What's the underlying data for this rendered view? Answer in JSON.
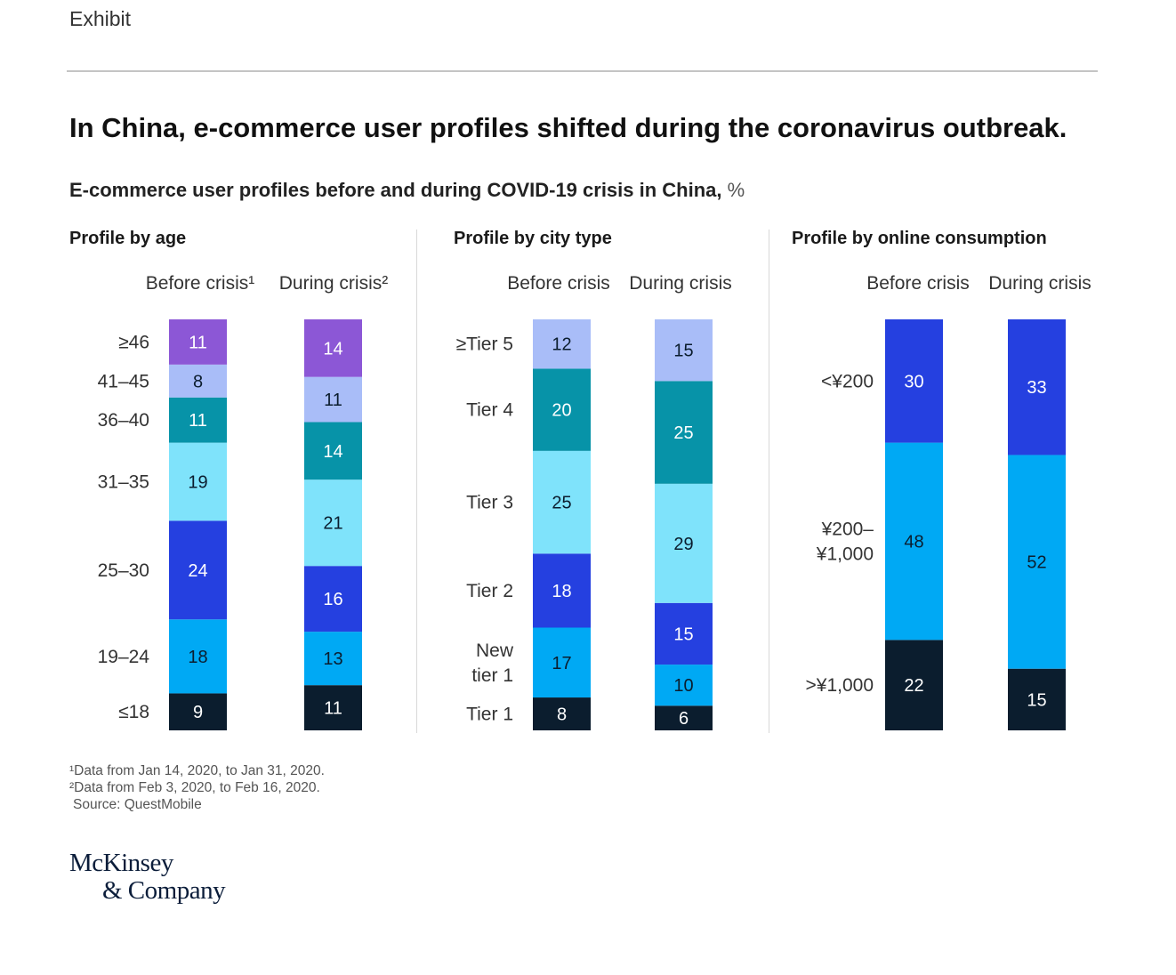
{
  "header": {
    "exhibit_label": "Exhibit",
    "title": "In China, e-commerce user profiles shifted during the coronavirus outbreak.",
    "subtitle": "E-commerce user profiles before and during COVID-19 crisis in China,",
    "unit": "%"
  },
  "colors": {
    "dark_navy": "#0b1d2e",
    "bright_blue": "#00a9f4",
    "royal_blue": "#2540e0",
    "light_cyan": "#7fe3fb",
    "teal": "#0793a8",
    "lavender": "#a9bdf8",
    "purple": "#8c57d6"
  },
  "chart_data": [
    {
      "type": "bar",
      "stacked": true,
      "title": "Profile by age",
      "categories": [
        "Before crisis",
        "During crisis"
      ],
      "category_superscripts": [
        "1",
        "2"
      ],
      "series": [
        {
          "name": "≤18",
          "values": [
            9,
            11
          ],
          "color": "#0b1d2e",
          "text_color": "#ffffff"
        },
        {
          "name": "19–24",
          "values": [
            18,
            13
          ],
          "color": "#00a9f4",
          "text_color": "#0b1d2e"
        },
        {
          "name": "25–30",
          "values": [
            24,
            16
          ],
          "color": "#2540e0",
          "text_color": "#ffffff"
        },
        {
          "name": "31–35",
          "values": [
            19,
            21
          ],
          "color": "#7fe3fb",
          "text_color": "#0b1d2e"
        },
        {
          "name": "36–40",
          "values": [
            11,
            14
          ],
          "color": "#0793a8",
          "text_color": "#ffffff"
        },
        {
          "name": "41–45",
          "values": [
            8,
            11
          ],
          "color": "#a9bdf8",
          "text_color": "#0b1d2e"
        },
        {
          "name": "≥46",
          "values": [
            11,
            14
          ],
          "color": "#8c57d6",
          "text_color": "#ffffff"
        }
      ]
    },
    {
      "type": "bar",
      "stacked": true,
      "title": "Profile by city type",
      "categories": [
        "Before crisis",
        "During crisis"
      ],
      "series": [
        {
          "name": "Tier 1",
          "values": [
            8,
            6
          ],
          "color": "#0b1d2e",
          "text_color": "#ffffff"
        },
        {
          "name": "New tier 1",
          "values": [
            17,
            10
          ],
          "color": "#00a9f4",
          "text_color": "#0b1d2e"
        },
        {
          "name": "Tier 2",
          "values": [
            18,
            15
          ],
          "color": "#2540e0",
          "text_color": "#ffffff"
        },
        {
          "name": "Tier 3",
          "values": [
            25,
            29
          ],
          "color": "#7fe3fb",
          "text_color": "#0b1d2e"
        },
        {
          "name": "Tier 4",
          "values": [
            20,
            25
          ],
          "color": "#0793a8",
          "text_color": "#ffffff"
        },
        {
          "name": "≥Tier 5",
          "values": [
            12,
            15
          ],
          "color": "#a9bdf8",
          "text_color": "#0b1d2e"
        }
      ]
    },
    {
      "type": "bar",
      "stacked": true,
      "title": "Profile by online consumption",
      "categories": [
        "Before crisis",
        "During crisis"
      ],
      "series": [
        {
          "name": ">¥1,000",
          "values": [
            22,
            15
          ],
          "color": "#0b1d2e",
          "text_color": "#ffffff"
        },
        {
          "name": "¥200–¥1,000",
          "values": [
            48,
            52
          ],
          "color": "#00a9f4",
          "text_color": "#0b1d2e"
        },
        {
          "name": "<¥200",
          "values": [
            30,
            33
          ],
          "color": "#2540e0",
          "text_color": "#ffffff"
        }
      ]
    }
  ],
  "footnotes": [
    "¹Data from Jan 14, 2020, to Jan 31, 2020.",
    "²Data from Feb 3, 2020, to Feb 16, 2020.",
    "Source: QuestMobile"
  ],
  "logo": {
    "line1": "McKinsey",
    "line2": "& Company"
  }
}
